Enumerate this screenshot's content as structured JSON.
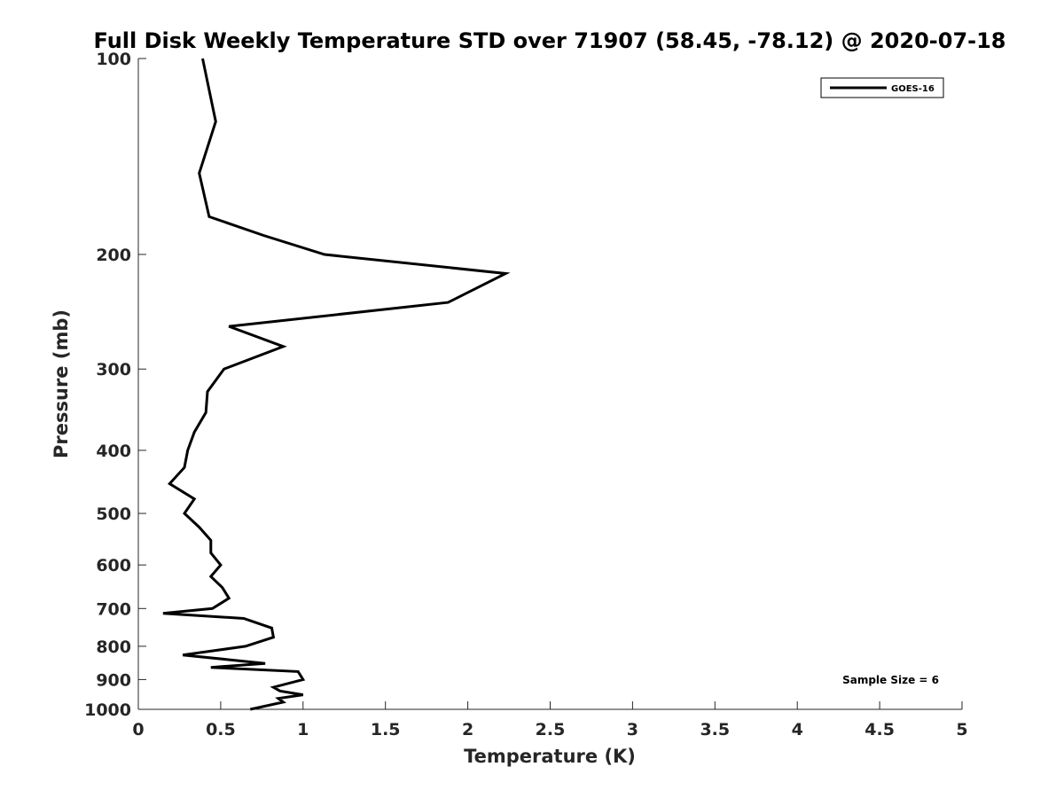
{
  "chart_data": {
    "type": "line",
    "title": "Full Disk Weekly Temperature STD over 71907 (58.45, -78.12) @ 2020-07-18",
    "xlabel": "Temperature (K)",
    "ylabel": "Pressure (mb)",
    "xlim": [
      0,
      5
    ],
    "ylim": [
      100,
      1000
    ],
    "y_scale": "log",
    "y_reversed": true,
    "x_ticks": [
      0,
      0.5,
      1,
      1.5,
      2,
      2.5,
      3,
      3.5,
      4,
      4.5,
      5
    ],
    "x_tick_labels": [
      "0",
      "0.5",
      "1",
      "1.5",
      "2",
      "2.5",
      "3",
      "3.5",
      "4",
      "4.5",
      "5"
    ],
    "y_ticks": [
      100,
      200,
      300,
      400,
      500,
      600,
      700,
      800,
      900,
      1000
    ],
    "y_tick_labels": [
      "100",
      "200",
      "300",
      "400",
      "500",
      "600",
      "700",
      "800",
      "900",
      "1000"
    ],
    "grid": false,
    "legend_position": "top-right",
    "annotation": "Sample Size = 6",
    "series": [
      {
        "name": "GOES-16",
        "color": "#000000",
        "points": [
          [
            0.39,
            100
          ],
          [
            0.47,
            125
          ],
          [
            0.37,
            150
          ],
          [
            0.43,
            175
          ],
          [
            0.76,
            187
          ],
          [
            1.13,
            200
          ],
          [
            2.23,
            214
          ],
          [
            1.88,
            237
          ],
          [
            0.55,
            258
          ],
          [
            0.88,
            277
          ],
          [
            0.52,
            300
          ],
          [
            0.42,
            325
          ],
          [
            0.41,
            350
          ],
          [
            0.34,
            375
          ],
          [
            0.3,
            400
          ],
          [
            0.28,
            425
          ],
          [
            0.19,
            450
          ],
          [
            0.34,
            475
          ],
          [
            0.28,
            500
          ],
          [
            0.37,
            525
          ],
          [
            0.44,
            550
          ],
          [
            0.44,
            575
          ],
          [
            0.5,
            600
          ],
          [
            0.44,
            625
          ],
          [
            0.51,
            650
          ],
          [
            0.55,
            675
          ],
          [
            0.45,
            700
          ],
          [
            0.15,
            712
          ],
          [
            0.64,
            725
          ],
          [
            0.81,
            750
          ],
          [
            0.82,
            775
          ],
          [
            0.65,
            800
          ],
          [
            0.27,
            825
          ],
          [
            0.77,
            850
          ],
          [
            0.44,
            862
          ],
          [
            0.97,
            875
          ],
          [
            1.0,
            900
          ],
          [
            0.82,
            925
          ],
          [
            0.86,
            937
          ],
          [
            1.0,
            950
          ],
          [
            0.85,
            962
          ],
          [
            0.88,
            975
          ],
          [
            0.68,
            1000
          ]
        ]
      }
    ]
  }
}
